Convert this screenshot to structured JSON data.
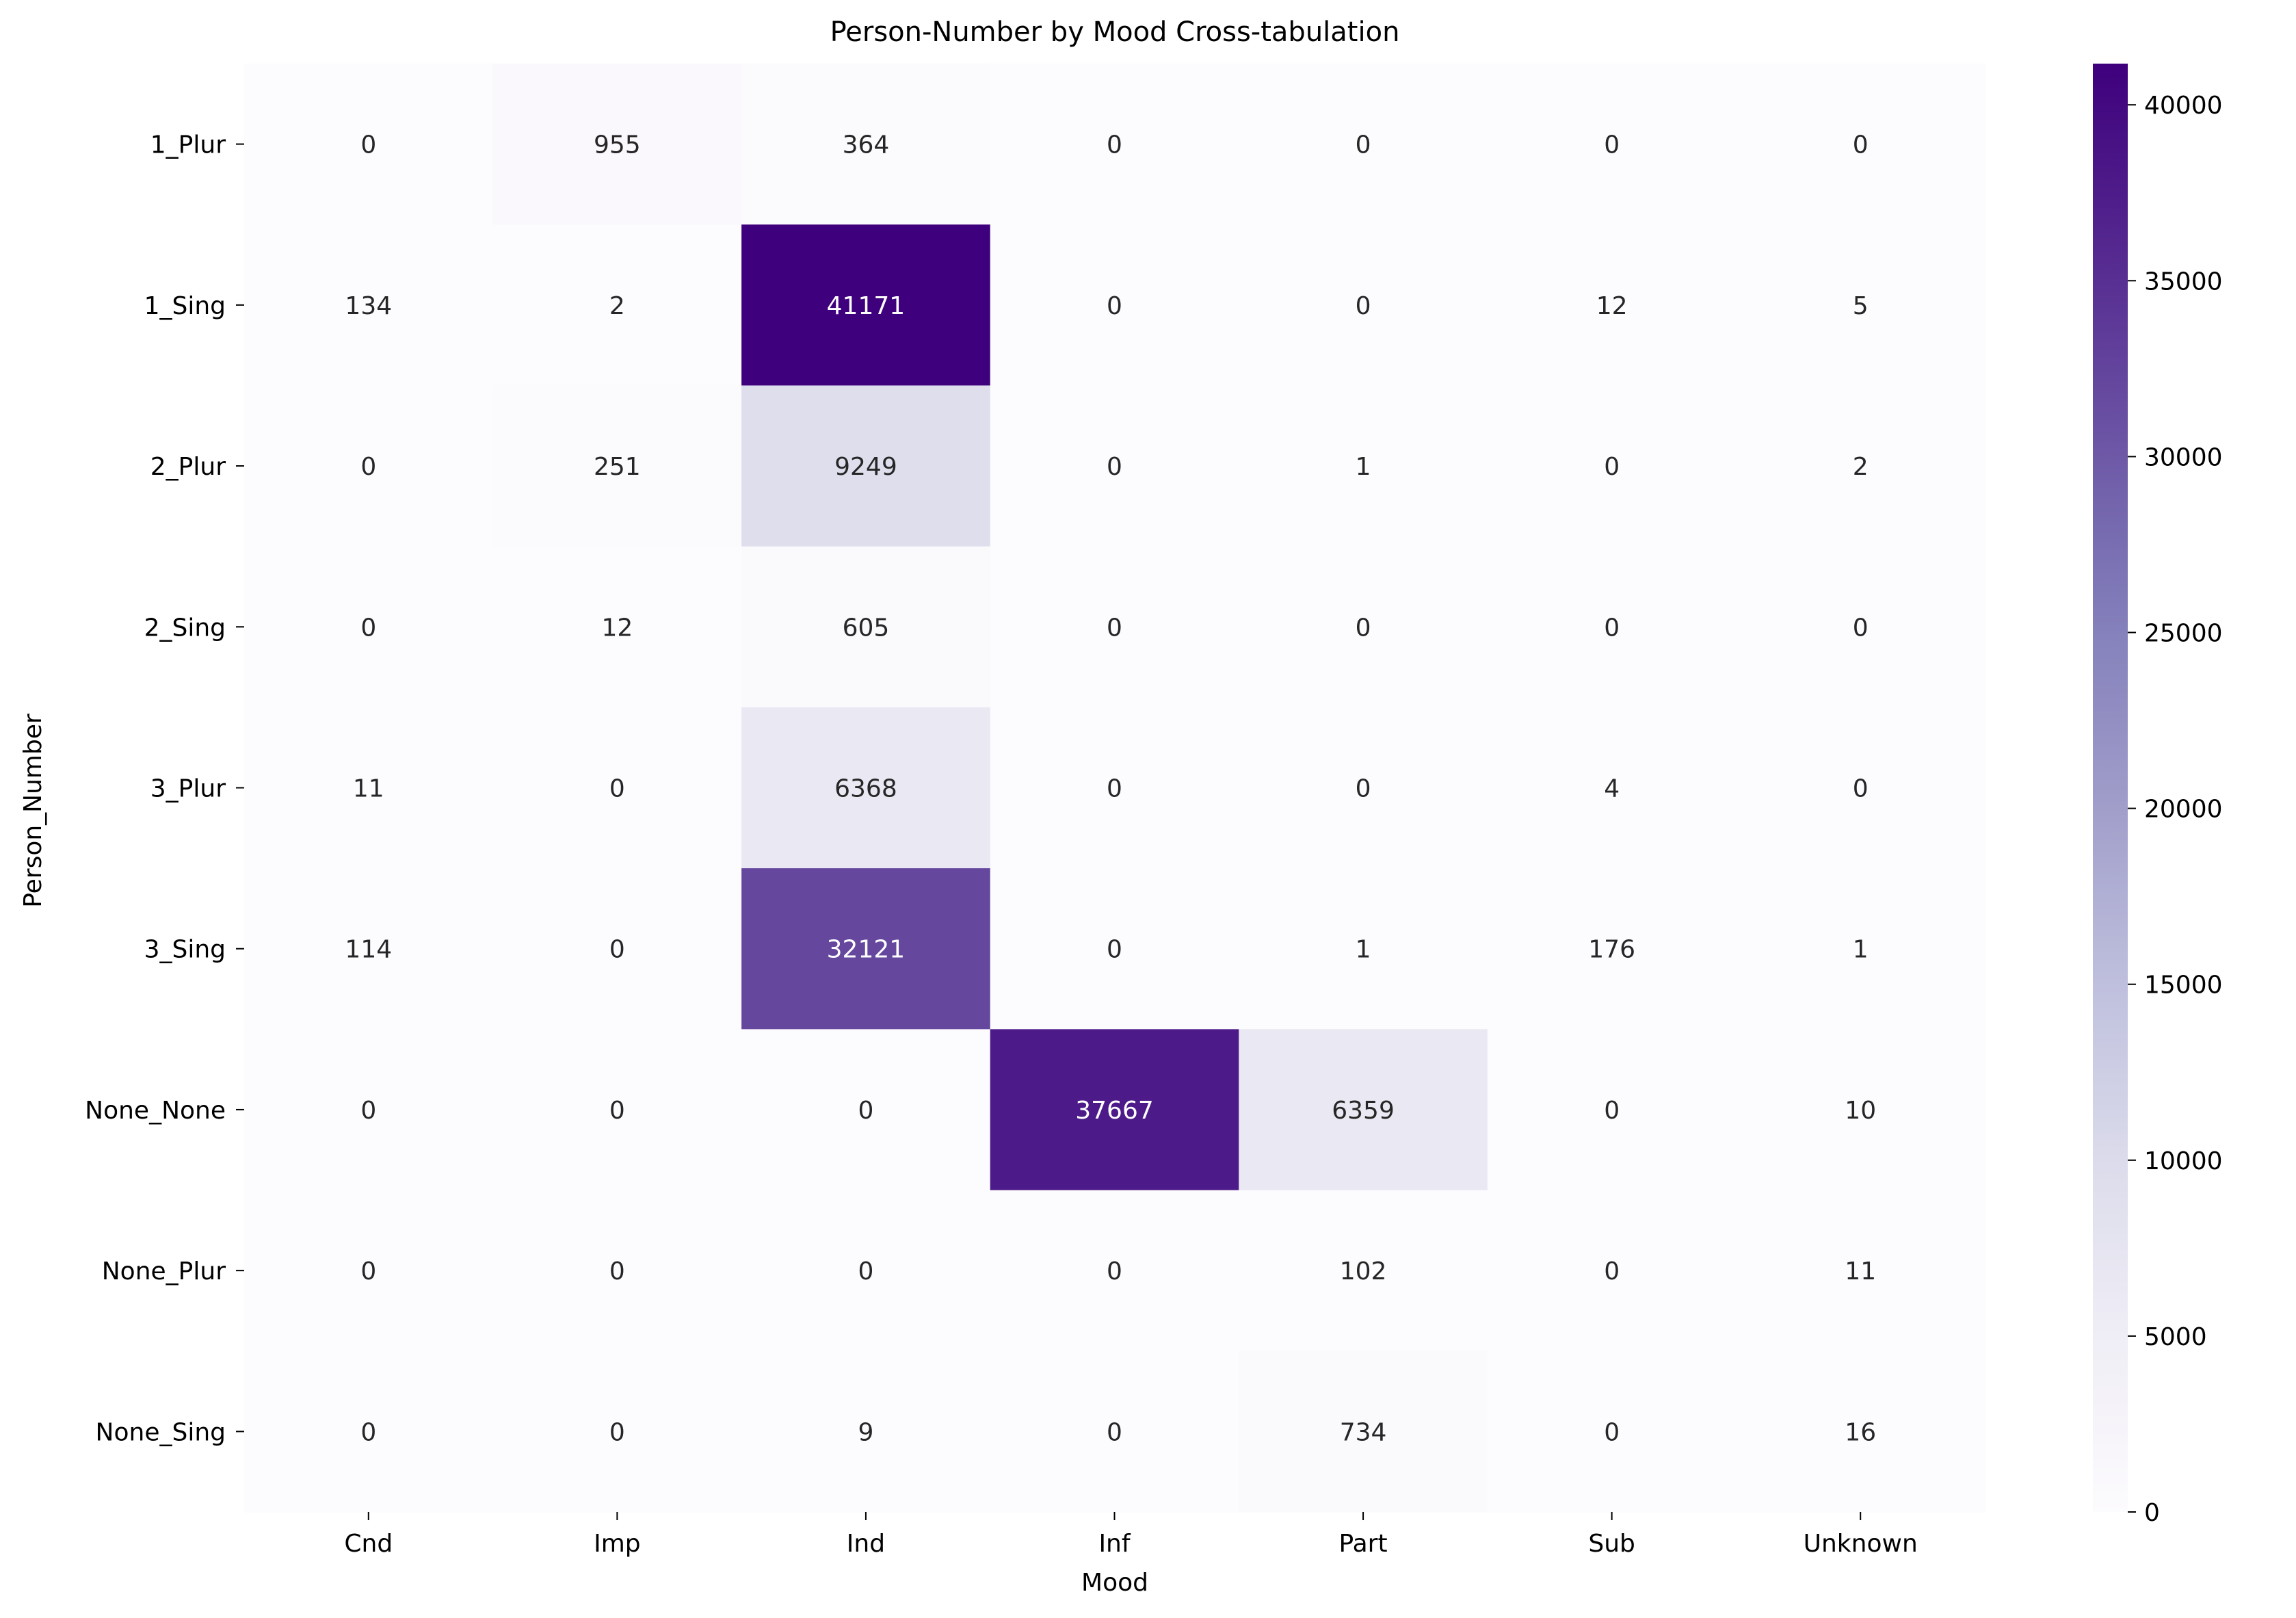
{
  "chart_data": {
    "type": "heatmap",
    "title": "Person-Number by Mood Cross-tabulation",
    "xlabel": "Mood",
    "ylabel": "Person_Number",
    "x_categories": [
      "Cnd",
      "Imp",
      "Ind",
      "Inf",
      "Part",
      "Sub",
      "Unknown"
    ],
    "y_categories": [
      "1_Plur",
      "1_Sing",
      "2_Plur",
      "2_Sing",
      "3_Plur",
      "3_Sing",
      "None_None",
      "None_Plur",
      "None_Sing"
    ],
    "values": [
      [
        0,
        955,
        364,
        0,
        0,
        0,
        0
      ],
      [
        134,
        2,
        41171,
        0,
        0,
        12,
        5
      ],
      [
        0,
        251,
        9249,
        0,
        1,
        0,
        2
      ],
      [
        0,
        12,
        605,
        0,
        0,
        0,
        0
      ],
      [
        11,
        0,
        6368,
        0,
        0,
        4,
        0
      ],
      [
        114,
        0,
        32121,
        0,
        1,
        176,
        1
      ],
      [
        0,
        0,
        0,
        37667,
        6359,
        0,
        10
      ],
      [
        0,
        0,
        0,
        0,
        102,
        0,
        11
      ],
      [
        0,
        0,
        9,
        0,
        734,
        0,
        16
      ]
    ],
    "colormap": "Purples",
    "colorbar": {
      "min": 0,
      "max": 41171,
      "ticks": [
        0,
        5000,
        10000,
        15000,
        20000,
        25000,
        30000,
        35000,
        40000
      ]
    },
    "annotations": true,
    "grid": false
  }
}
